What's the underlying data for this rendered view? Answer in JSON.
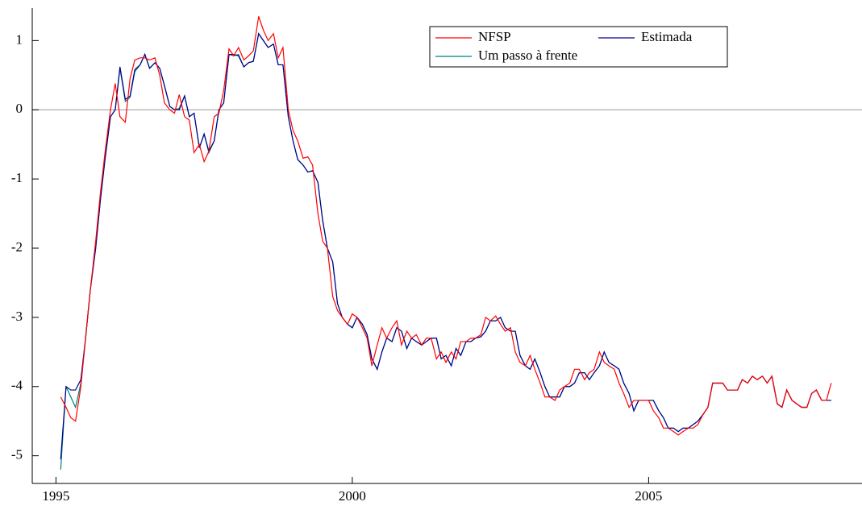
{
  "chart_data": {
    "type": "line",
    "x": [
      1995.08,
      1995.17,
      1995.25,
      1995.33,
      1995.42,
      1995.5,
      1995.58,
      1995.67,
      1995.75,
      1995.83,
      1995.92,
      1996.0,
      1996.08,
      1996.17,
      1996.25,
      1996.33,
      1996.42,
      1996.5,
      1996.58,
      1996.67,
      1996.75,
      1996.83,
      1996.92,
      1997.0,
      1997.08,
      1997.17,
      1997.25,
      1997.33,
      1997.42,
      1997.5,
      1997.58,
      1997.67,
      1997.75,
      1997.83,
      1997.92,
      1998.0,
      1998.08,
      1998.17,
      1998.25,
      1998.33,
      1998.42,
      1998.5,
      1998.58,
      1998.67,
      1998.75,
      1998.83,
      1998.92,
      1999.0,
      1999.08,
      1999.17,
      1999.25,
      1999.33,
      1999.42,
      1999.5,
      1999.58,
      1999.67,
      1999.75,
      1999.83,
      1999.92,
      2000.0,
      2000.08,
      2000.17,
      2000.25,
      2000.33,
      2000.42,
      2000.5,
      2000.58,
      2000.67,
      2000.75,
      2000.83,
      2000.92,
      2001.0,
      2001.08,
      2001.17,
      2001.25,
      2001.33,
      2001.42,
      2001.5,
      2001.58,
      2001.67,
      2001.75,
      2001.83,
      2001.92,
      2002.0,
      2002.08,
      2002.17,
      2002.25,
      2002.33,
      2002.42,
      2002.5,
      2002.58,
      2002.67,
      2002.75,
      2002.83,
      2002.92,
      2003.0,
      2003.08,
      2003.17,
      2003.25,
      2003.33,
      2003.42,
      2003.5,
      2003.58,
      2003.67,
      2003.75,
      2003.83,
      2003.92,
      2004.0,
      2004.08,
      2004.17,
      2004.25,
      2004.33,
      2004.42,
      2004.5,
      2004.58,
      2004.67,
      2004.75,
      2004.83,
      2004.92,
      2005.0,
      2005.08,
      2005.17,
      2005.25,
      2005.33,
      2005.42,
      2005.5,
      2005.58,
      2005.67,
      2005.75,
      2005.83,
      2005.92,
      2006.0,
      2006.08,
      2006.17,
      2006.25,
      2006.33,
      2006.42,
      2006.5,
      2006.58,
      2006.67,
      2006.75,
      2006.83,
      2006.92,
      2007.0,
      2007.08,
      2007.17,
      2007.25,
      2007.33,
      2007.42,
      2007.5,
      2007.58,
      2007.67,
      2007.75,
      2007.83,
      2007.92,
      2008.0,
      2008.08
    ],
    "series": [
      {
        "name": "NFSP",
        "color": "#ff0000",
        "values": [
          -4.15,
          -4.3,
          -4.45,
          -4.5,
          -4.0,
          -3.3,
          -2.6,
          -1.9,
          -1.2,
          -0.6,
          0.0,
          0.38,
          -0.1,
          -0.18,
          0.45,
          0.72,
          0.75,
          0.75,
          0.72,
          0.75,
          0.5,
          0.1,
          0.0,
          -0.05,
          0.22,
          -0.1,
          -0.15,
          -0.62,
          -0.5,
          -0.75,
          -0.6,
          -0.1,
          -0.05,
          0.28,
          0.88,
          0.78,
          0.9,
          0.72,
          0.78,
          0.85,
          1.35,
          1.15,
          1.0,
          1.1,
          0.75,
          0.9,
          0.0,
          -0.3,
          -0.45,
          -0.7,
          -0.68,
          -0.8,
          -1.5,
          -1.9,
          -2.0,
          -2.7,
          -2.9,
          -3.0,
          -3.1,
          -2.95,
          -3.0,
          -3.15,
          -3.3,
          -3.7,
          -3.4,
          -3.15,
          -3.3,
          -3.15,
          -3.05,
          -3.4,
          -3.2,
          -3.3,
          -3.25,
          -3.4,
          -3.3,
          -3.3,
          -3.6,
          -3.5,
          -3.65,
          -3.5,
          -3.6,
          -3.35,
          -3.35,
          -3.3,
          -3.3,
          -3.25,
          -3.0,
          -3.05,
          -2.98,
          -3.1,
          -3.2,
          -3.15,
          -3.5,
          -3.65,
          -3.7,
          -3.55,
          -3.75,
          -3.95,
          -4.15,
          -4.15,
          -4.2,
          -4.05,
          -4.0,
          -3.95,
          -3.75,
          -3.75,
          -3.9,
          -3.8,
          -3.75,
          -3.5,
          -3.65,
          -3.7,
          -3.75,
          -3.95,
          -4.1,
          -4.3,
          -4.2,
          -4.2,
          -4.2,
          -4.2,
          -4.35,
          -4.45,
          -4.6,
          -4.6,
          -4.65,
          -4.7,
          -4.65,
          -4.6,
          -4.6,
          -4.55,
          -4.4,
          -4.3,
          -3.95,
          -3.95,
          -3.95,
          -4.05,
          -4.05,
          -4.05,
          -3.9,
          -3.95,
          -3.85,
          -3.9,
          -3.85,
          -3.95,
          -3.85,
          -4.25,
          -4.3,
          -4.05,
          -4.2,
          -4.25,
          -4.3,
          -4.3,
          -4.1,
          -4.05,
          -4.2,
          -4.2,
          -3.95
        ]
      },
      {
        "name": "Estimada",
        "color": "#00008b",
        "values": [
          -5.05,
          -4.0,
          -4.05,
          -4.05,
          -3.9,
          -3.3,
          -2.6,
          -2.0,
          -1.3,
          -0.7,
          -0.1,
          0.0,
          0.62,
          0.15,
          0.2,
          0.58,
          0.65,
          0.8,
          0.6,
          0.68,
          0.6,
          0.35,
          0.05,
          0.0,
          0.0,
          0.2,
          -0.1,
          -0.05,
          -0.55,
          -0.35,
          -0.6,
          -0.45,
          0.0,
          0.1,
          0.8,
          0.8,
          0.78,
          0.62,
          0.68,
          0.7,
          1.1,
          1.0,
          0.9,
          0.95,
          0.65,
          0.65,
          -0.1,
          -0.45,
          -0.72,
          -0.8,
          -0.9,
          -0.88,
          -1.05,
          -1.6,
          -2.0,
          -2.2,
          -2.8,
          -3.0,
          -3.1,
          -3.15,
          -3.0,
          -3.1,
          -3.25,
          -3.6,
          -3.75,
          -3.5,
          -3.3,
          -3.35,
          -3.15,
          -3.2,
          -3.45,
          -3.3,
          -3.35,
          -3.4,
          -3.35,
          -3.3,
          -3.3,
          -3.6,
          -3.55,
          -3.7,
          -3.45,
          -3.55,
          -3.35,
          -3.35,
          -3.3,
          -3.28,
          -3.2,
          -3.05,
          -3.05,
          -3.0,
          -3.15,
          -3.2,
          -3.2,
          -3.55,
          -3.7,
          -3.75,
          -3.6,
          -3.8,
          -4.0,
          -4.15,
          -4.15,
          -4.15,
          -4.0,
          -4.0,
          -3.95,
          -3.8,
          -3.8,
          -3.9,
          -3.8,
          -3.7,
          -3.5,
          -3.65,
          -3.7,
          -3.75,
          -3.95,
          -4.1,
          -4.35,
          -4.2,
          -4.2,
          -4.2,
          -4.2,
          -4.35,
          -4.45,
          -4.6,
          -4.6,
          -4.65,
          -4.6,
          -4.6,
          -4.55,
          -4.5,
          -4.4,
          -4.3,
          -3.95,
          -3.95,
          -3.95,
          -4.05,
          -4.05,
          -4.05,
          -3.9,
          -3.95,
          -3.85,
          -3.9,
          -3.85,
          -3.95,
          -3.85,
          -4.25,
          -4.3,
          -4.05,
          -4.2,
          -4.25,
          -4.3,
          -4.3,
          -4.1,
          -4.05,
          -4.2,
          -4.2,
          -4.2
        ]
      },
      {
        "name": "Um passo à frente",
        "color": "#008080",
        "values": [
          -5.2,
          -4.0,
          -4.15,
          -4.3,
          -3.95,
          -3.3,
          -2.6,
          -2.0,
          -1.3,
          -0.7,
          -0.1,
          0.0,
          0.6,
          0.12,
          0.18,
          0.55,
          0.65,
          0.8,
          0.6,
          0.68,
          0.6,
          0.35,
          0.05,
          0.0,
          0.02,
          0.2,
          -0.1,
          -0.05,
          -0.55,
          -0.35,
          -0.62,
          -0.45,
          0.0,
          0.1,
          0.8,
          0.78,
          0.8,
          0.62,
          0.68,
          0.7,
          1.1,
          1.0,
          0.9,
          0.95,
          0.65,
          0.65,
          -0.1,
          -0.45,
          -0.72,
          -0.8,
          -0.9,
          -0.88,
          -1.05,
          -1.6,
          -2.0,
          -2.2,
          -2.8,
          -3.0,
          -3.1,
          -3.15,
          -3.0,
          -3.1,
          -3.25,
          -3.6,
          -3.75,
          -3.5,
          -3.3,
          -3.35,
          -3.15,
          -3.2,
          -3.45,
          -3.3,
          -3.35,
          -3.4,
          -3.35,
          -3.3,
          -3.3,
          -3.6,
          -3.55,
          -3.7,
          -3.45,
          -3.55,
          -3.35,
          -3.35,
          -3.3,
          -3.28,
          -3.2,
          -3.05,
          -3.05,
          -3.0,
          -3.15,
          -3.2,
          -3.2,
          -3.55,
          -3.7,
          -3.75,
          -3.6,
          -3.8,
          -4.0,
          -4.15,
          -4.15,
          -4.15,
          -4.0,
          -4.0,
          -3.95,
          -3.8,
          -3.8,
          -3.9,
          -3.8,
          -3.7,
          -3.5,
          -3.65,
          -3.7,
          -3.75,
          -3.95,
          -4.1,
          -4.35,
          -4.2,
          -4.2,
          -4.2,
          -4.2,
          -4.35,
          -4.45,
          -4.6,
          -4.6,
          -4.65,
          -4.6,
          -4.6,
          -4.55,
          -4.5,
          -4.4,
          -4.3,
          -3.95,
          -3.95,
          -3.95,
          -4.05,
          -4.05,
          -4.05,
          -3.9,
          -3.95,
          -3.85,
          -3.9,
          -3.85,
          -3.95,
          -3.85,
          -4.25,
          -4.3,
          -4.05,
          -4.2,
          -4.25,
          -4.3,
          -4.3,
          -4.1,
          -4.05,
          -4.2,
          -4.2,
          -4.2
        ]
      }
    ],
    "xlim": [
      1994.6,
      2008.6
    ],
    "xticks": [
      1995,
      2000,
      2005
    ],
    "ylim": [
      -5.4,
      1.47
    ],
    "yticks": [
      1,
      0,
      -1,
      -2,
      -3,
      -4,
      -5
    ],
    "zero_line": true,
    "legend": "upper right"
  }
}
